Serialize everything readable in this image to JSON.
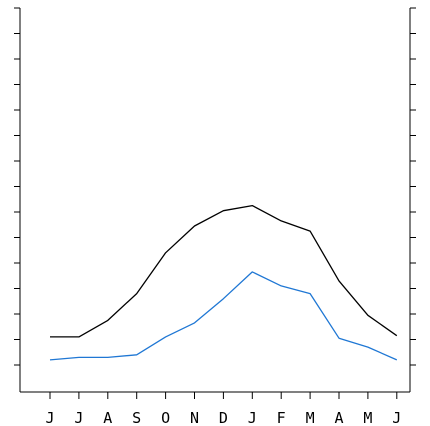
{
  "chart_data": {
    "type": "line",
    "title": "",
    "xlabel": "",
    "ylabel": "",
    "categories": [
      "J",
      "J",
      "A",
      "S",
      "O",
      "N",
      "D",
      "J",
      "F",
      "M",
      "A",
      "M",
      "J"
    ],
    "ylim": [
      0,
      14
    ],
    "y_ticks": [
      0,
      1,
      2,
      3,
      4,
      5,
      6,
      7,
      8,
      9,
      10,
      11,
      12,
      13,
      14
    ],
    "grid": false,
    "legend": "none",
    "series": [
      {
        "color": "#000000",
        "values": [
          1.1,
          1.1,
          1.75,
          2.8,
          4.4,
          5.45,
          6.05,
          6.25,
          5.65,
          5.25,
          3.3,
          1.95,
          1.15
        ]
      },
      {
        "color": "#1f77d4",
        "values": [
          0.2,
          0.3,
          0.3,
          0.4,
          1.1,
          1.65,
          2.6,
          3.65,
          3.1,
          2.8,
          1.05,
          0.7,
          0.2
        ]
      }
    ]
  }
}
